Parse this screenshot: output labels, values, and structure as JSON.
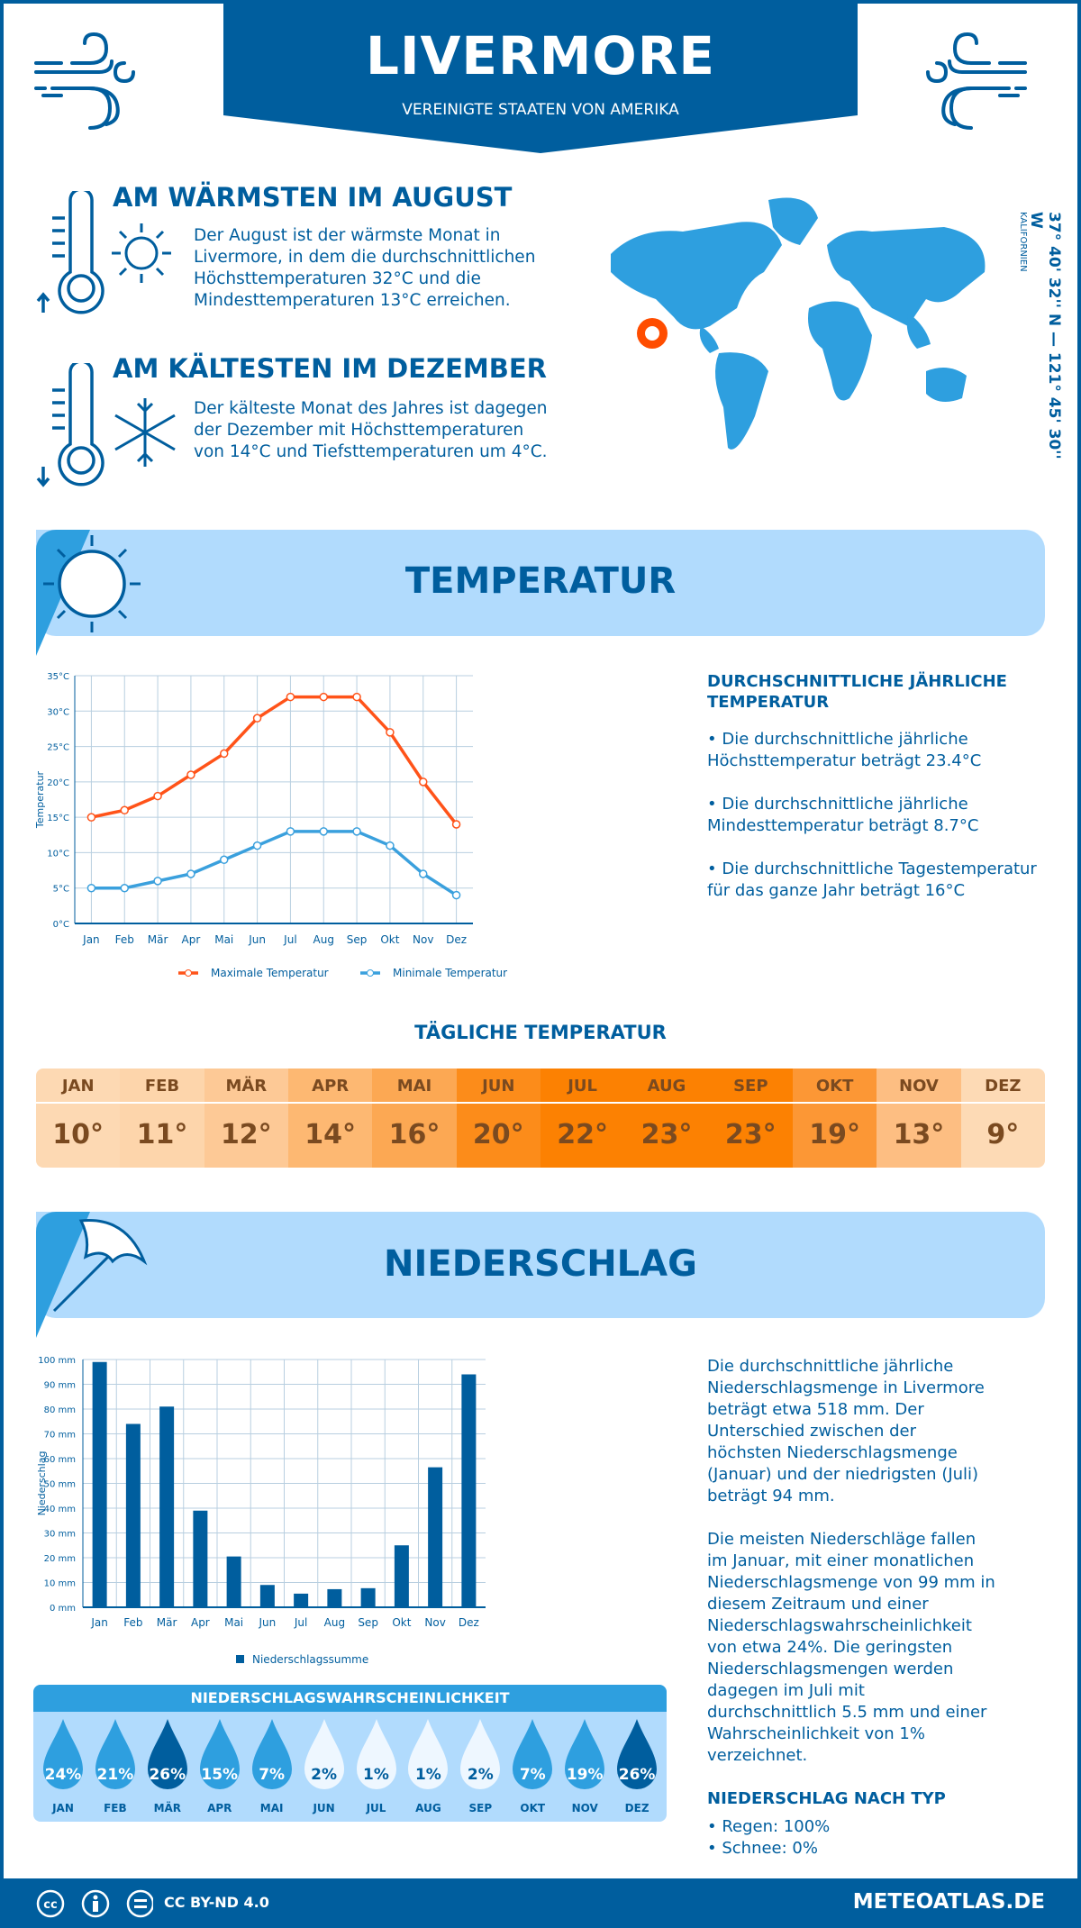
{
  "header": {
    "city": "LIVERMORE",
    "country": "VEREINIGTE STAATEN VON AMERIKA"
  },
  "warmest": {
    "heading": "AM WÄRMSTEN IM AUGUST",
    "text": "Der August ist der wärmste Monat in Livermore, in dem die durchschnittlichen Höchsttemperaturen 32°C und die Mindesttemperaturen 13°C erreichen."
  },
  "coldest": {
    "heading": "AM KÄLTESTEN IM DEZEMBER",
    "text": "Der kälteste Monat des Jahres ist dagegen der Dezember mit Höchsttemperaturen von 14°C und Tiefsttemperaturen um 4°C."
  },
  "coords": {
    "text": "37° 40' 32'' N — 121° 45' 30'' W",
    "region": "KALIFORNIEN"
  },
  "temperature": {
    "section_title": "TEMPERATUR",
    "annual_heading": "DURCHSCHNITTLICHE JÄHRLICHE TEMPERATUR",
    "bullets": [
      "• Die durchschnittliche jährliche Höchsttemperatur beträgt 23.4°C",
      "• Die durchschnittliche jährliche Mindesttemperatur beträgt 8.7°C",
      "• Die durchschnittliche Tagestemperatur für das ganze Jahr beträgt 16°C"
    ]
  },
  "daily": {
    "title": "TÄGLICHE TEMPERATUR",
    "months": [
      "JAN",
      "FEB",
      "MÄR",
      "APR",
      "MAI",
      "JUN",
      "JUL",
      "AUG",
      "SEP",
      "OKT",
      "NOV",
      "DEZ"
    ],
    "values": [
      "10°",
      "11°",
      "12°",
      "14°",
      "16°",
      "20°",
      "22°",
      "23°",
      "23°",
      "19°",
      "13°",
      "9°"
    ],
    "colors": [
      "#fdd9b3",
      "#fdd5ab",
      "#fdc996",
      "#fdb872",
      "#fca853",
      "#fc8c1a",
      "#fc8102",
      "#fc8102",
      "#fc8102",
      "#fc9735",
      "#fdbe82",
      "#fddab5"
    ]
  },
  "precipitation": {
    "section_title": "NIEDERSCHLAG",
    "paragraphs": [
      "Die durchschnittliche jährliche Niederschlagsmenge in Livermore beträgt etwa 518 mm. Der Unterschied zwischen der höchsten Niederschlagsmenge (Januar) und der niedrigsten (Juli) beträgt 94 mm.",
      "Die meisten Niederschläge fallen im Januar, mit einer monatlichen Niederschlagsmenge von 99 mm in diesem Zeitraum und einer Niederschlagswahrscheinlichkeit von etwa 24%. Die geringsten Niederschlagsmengen werden dagegen im Juli mit durchschnittlich 5.5 mm und einer Wahrscheinlichkeit von 1% verzeichnet."
    ],
    "type_heading": "NIEDERSCHLAG NACH TYP",
    "types": [
      "• Regen: 100%",
      "• Schnee: 0%"
    ]
  },
  "probability": {
    "title": "NIEDERSCHLAGSWAHRSCHEINLICHKEIT",
    "months": [
      "JAN",
      "FEB",
      "MÄR",
      "APR",
      "MAI",
      "JUN",
      "JUL",
      "AUG",
      "SEP",
      "OKT",
      "NOV",
      "DEZ"
    ],
    "values": [
      "24%",
      "21%",
      "26%",
      "15%",
      "7%",
      "2%",
      "1%",
      "1%",
      "2%",
      "7%",
      "19%",
      "26%"
    ]
  },
  "footer": {
    "license": "CC BY-ND 4.0",
    "site": "METEOATLAS.DE"
  },
  "colors": {
    "dark_blue": "#005e9e",
    "light_blue": "#2e9fdf",
    "band": "#b1dbfd",
    "max_line": "#ff5319",
    "min_line": "#3aa0dd"
  },
  "chart_data": [
    {
      "type": "line",
      "ylabel": "Temperatur",
      "categories": [
        "Jan",
        "Feb",
        "Mär",
        "Apr",
        "Mai",
        "Jun",
        "Jul",
        "Aug",
        "Sep",
        "Okt",
        "Nov",
        "Dez"
      ],
      "ylim": [
        0,
        35
      ],
      "yticks": [
        "0°C",
        "5°C",
        "10°C",
        "15°C",
        "20°C",
        "25°C",
        "30°C",
        "35°C"
      ],
      "grid": true,
      "legend": "bottom",
      "series": [
        {
          "name": "Maximale Temperatur",
          "color": "#ff5319",
          "values": [
            15,
            16,
            18,
            21,
            24,
            29,
            32,
            32,
            32,
            27,
            20,
            14
          ]
        },
        {
          "name": "Minimale Temperatur",
          "color": "#3aa0dd",
          "values": [
            5,
            5,
            6,
            7,
            9,
            11,
            13,
            13,
            13,
            11,
            7,
            4
          ]
        }
      ]
    },
    {
      "type": "bar",
      "ylabel": "Niederschlag",
      "categories": [
        "Jan",
        "Feb",
        "Mär",
        "Apr",
        "Mai",
        "Jun",
        "Jul",
        "Aug",
        "Sep",
        "Okt",
        "Nov",
        "Dez"
      ],
      "ylim": [
        0,
        100
      ],
      "yticks": [
        "0 mm",
        "10 mm",
        "20 mm",
        "30 mm",
        "40 mm",
        "50 mm",
        "60 mm",
        "70 mm",
        "80 mm",
        "90 mm",
        "100 mm"
      ],
      "grid": true,
      "legend": "bottom",
      "series": [
        {
          "name": "Niederschlagssumme",
          "color": "#005e9e",
          "values": [
            99,
            74,
            81,
            39,
            20.5,
            9,
            5.5,
            7.3,
            7.7,
            25,
            56.5,
            94
          ]
        }
      ]
    }
  ]
}
